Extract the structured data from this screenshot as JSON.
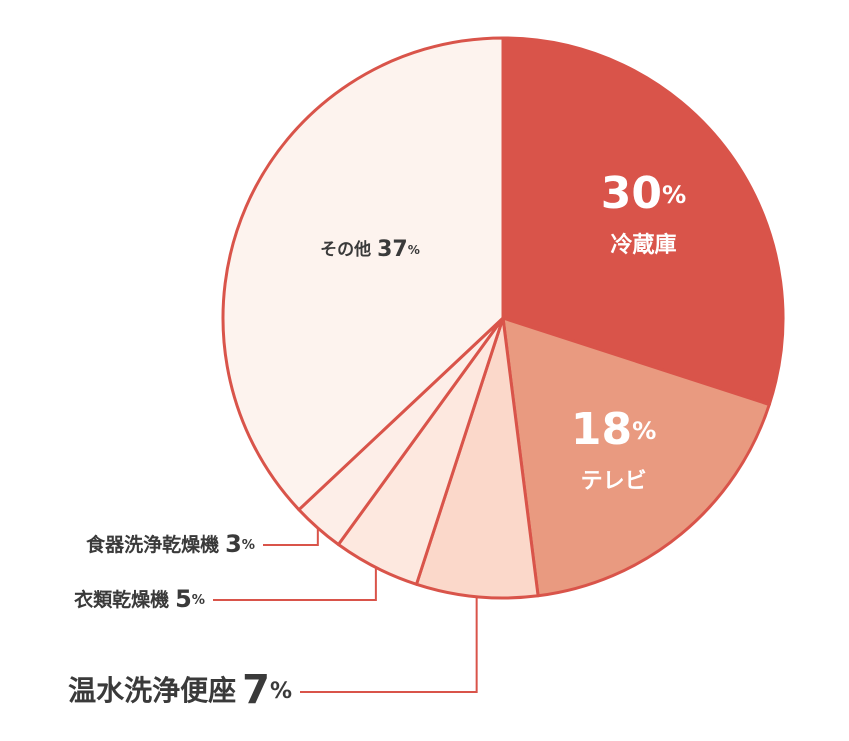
{
  "chart_data": {
    "type": "pie",
    "categories": [
      "冷蔵庫",
      "テレビ",
      "温水洗浄便座",
      "衣類乾燥機",
      "食器洗浄乾燥機",
      "その他"
    ],
    "values": [
      30,
      18,
      7,
      5,
      3,
      37
    ],
    "value_labels": [
      "30%",
      "18%",
      "7%",
      "5%",
      "3%",
      "37%"
    ],
    "colors": [
      "#d9544a",
      "#e99a80",
      "#fbd8ca",
      "#fde8df",
      "#fdeee8",
      "#fdf3ee"
    ],
    "edge_color": "#d9544a"
  }
}
